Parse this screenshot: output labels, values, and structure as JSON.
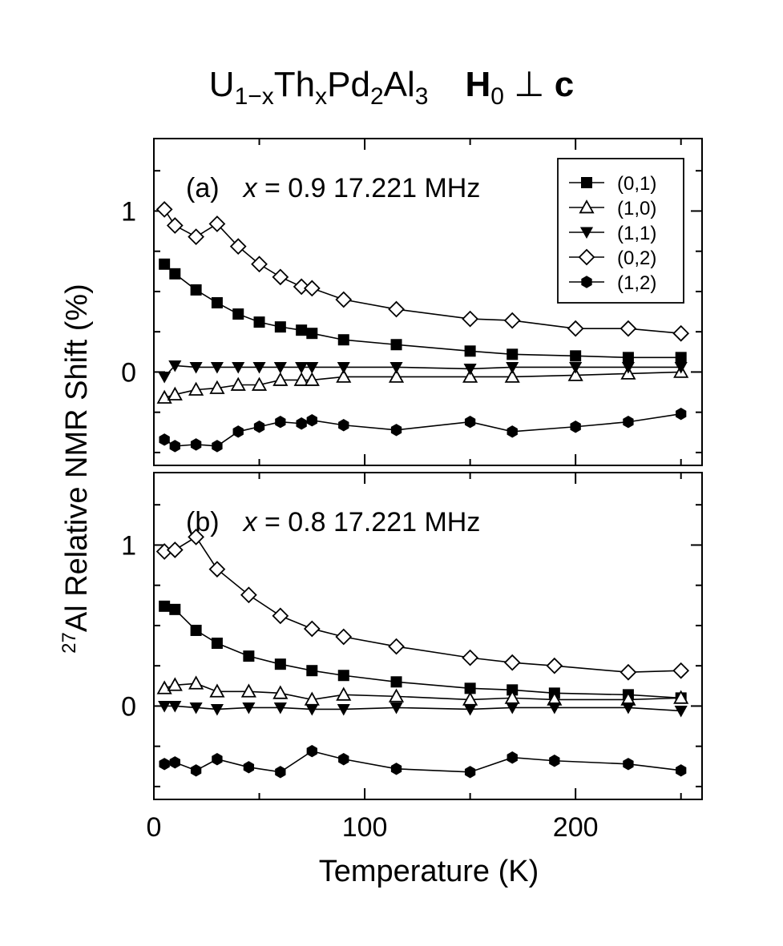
{
  "title": {
    "parts": {
      "p1": "U",
      "p1_sub": "1−x",
      "p2": "Th",
      "p2_sub": "x",
      "p3": "Pd",
      "p3_sub": "2",
      "p4": "Al",
      "p4_sub": "3",
      "h": "H",
      "h_sub": "0",
      "perp": "⊥",
      "c": "c"
    }
  },
  "axes": {
    "xlabel": "Temperature  (K)",
    "ylabel_sup": "27",
    "ylabel": "Al Relative NMR Shift  (%)"
  },
  "legend": {
    "placement": "top-right of panel (a)",
    "entries": [
      {
        "label": "(0,1)",
        "marker": "square-filled"
      },
      {
        "label": "(1,0)",
        "marker": "triangle-up-open"
      },
      {
        "label": "(1,1)",
        "marker": "triangle-down-filled"
      },
      {
        "label": "(0,2)",
        "marker": "diamond-open"
      },
      {
        "label": "(1,2)",
        "marker": "hexagon-filled"
      }
    ]
  },
  "chart_data": [
    {
      "type": "line",
      "panel_label": "(a)",
      "annotation": {
        "var": "x",
        "rest": " = 0.9  17.221 MHz"
      },
      "xlim": [
        0,
        260
      ],
      "ylim": [
        -0.58,
        1.45
      ],
      "xticks": [
        0,
        100,
        200
      ],
      "yticks": [
        0,
        1
      ],
      "grid": false,
      "series": [
        {
          "name": "(0,1)",
          "marker": "square-filled",
          "x": [
            5,
            10,
            20,
            30,
            40,
            50,
            60,
            70,
            75,
            90,
            115,
            150,
            170,
            200,
            225,
            250
          ],
          "y": [
            0.67,
            0.61,
            0.51,
            0.43,
            0.36,
            0.31,
            0.28,
            0.26,
            0.24,
            0.2,
            0.17,
            0.13,
            0.11,
            0.1,
            0.09,
            0.09
          ]
        },
        {
          "name": "(1,0)",
          "marker": "triangle-up-open",
          "x": [
            5,
            10,
            20,
            30,
            40,
            50,
            60,
            70,
            75,
            90,
            115,
            150,
            170,
            200,
            225,
            250
          ],
          "y": [
            -0.16,
            -0.14,
            -0.11,
            -0.1,
            -0.08,
            -0.08,
            -0.05,
            -0.05,
            -0.05,
            -0.03,
            -0.03,
            -0.03,
            -0.03,
            -0.02,
            -0.01,
            0.0
          ]
        },
        {
          "name": "(1,1)",
          "marker": "triangle-down-filled",
          "x": [
            5,
            10,
            20,
            30,
            40,
            50,
            60,
            70,
            75,
            90,
            115,
            150,
            170,
            200,
            225,
            250
          ],
          "y": [
            -0.03,
            0.04,
            0.03,
            0.03,
            0.03,
            0.03,
            0.03,
            0.03,
            0.03,
            0.03,
            0.03,
            0.02,
            0.03,
            0.03,
            0.03,
            0.03
          ]
        },
        {
          "name": "(0,2)",
          "marker": "diamond-open",
          "x": [
            5,
            10,
            20,
            30,
            40,
            50,
            60,
            70,
            75,
            90,
            115,
            150,
            170,
            200,
            225,
            250
          ],
          "y": [
            1.01,
            0.91,
            0.84,
            0.92,
            0.78,
            0.67,
            0.59,
            0.53,
            0.52,
            0.45,
            0.39,
            0.33,
            0.32,
            0.27,
            0.27,
            0.24
          ]
        },
        {
          "name": "(1,2)",
          "marker": "hexagon-filled",
          "x": [
            5,
            10,
            20,
            30,
            40,
            50,
            60,
            70,
            75,
            90,
            115,
            150,
            170,
            200,
            225,
            250
          ],
          "y": [
            -0.42,
            -0.46,
            -0.45,
            -0.46,
            -0.37,
            -0.34,
            -0.31,
            -0.32,
            -0.3,
            -0.33,
            -0.36,
            -0.31,
            -0.37,
            -0.34,
            -0.31,
            -0.26
          ]
        }
      ]
    },
    {
      "type": "line",
      "panel_label": "(b)",
      "annotation": {
        "var": "x",
        "rest": " = 0.8  17.221 MHz"
      },
      "xlim": [
        0,
        260
      ],
      "ylim": [
        -0.58,
        1.45
      ],
      "xticks": [
        0,
        100,
        200
      ],
      "yticks": [
        0,
        1
      ],
      "grid": false,
      "series": [
        {
          "name": "(0,1)",
          "marker": "square-filled",
          "x": [
            5,
            10,
            20,
            30,
            45,
            60,
            75,
            90,
            115,
            150,
            170,
            190,
            225,
            250
          ],
          "y": [
            0.62,
            0.6,
            0.47,
            0.39,
            0.31,
            0.26,
            0.22,
            0.19,
            0.15,
            0.11,
            0.1,
            0.08,
            0.07,
            0.05
          ]
        },
        {
          "name": "(1,0)",
          "marker": "triangle-up-open",
          "x": [
            5,
            10,
            20,
            30,
            45,
            60,
            75,
            90,
            115,
            150,
            170,
            190,
            225,
            250
          ],
          "y": [
            0.11,
            0.13,
            0.14,
            0.09,
            0.09,
            0.08,
            0.04,
            0.07,
            0.06,
            0.04,
            0.05,
            0.04,
            0.04,
            0.05
          ]
        },
        {
          "name": "(1,1)",
          "marker": "triangle-down-filled",
          "x": [
            5,
            10,
            20,
            30,
            45,
            60,
            75,
            90,
            115,
            150,
            170,
            190,
            225,
            250
          ],
          "y": [
            0.0,
            0.0,
            -0.01,
            -0.02,
            -0.01,
            -0.01,
            -0.02,
            -0.02,
            -0.01,
            -0.02,
            -0.01,
            -0.01,
            -0.01,
            -0.03
          ]
        },
        {
          "name": "(0,2)",
          "marker": "diamond-open",
          "x": [
            5,
            10,
            20,
            30,
            45,
            60,
            75,
            90,
            115,
            150,
            170,
            190,
            225,
            250
          ],
          "y": [
            0.96,
            0.97,
            1.05,
            0.85,
            0.69,
            0.56,
            0.48,
            0.43,
            0.37,
            0.3,
            0.27,
            0.25,
            0.21,
            0.22
          ]
        },
        {
          "name": "(1,2)",
          "marker": "hexagon-filled",
          "x": [
            5,
            10,
            20,
            30,
            45,
            60,
            75,
            90,
            115,
            150,
            170,
            190,
            225,
            250
          ],
          "y": [
            -0.36,
            -0.35,
            -0.4,
            -0.33,
            -0.38,
            -0.41,
            -0.28,
            -0.33,
            -0.39,
            -0.41,
            -0.32,
            -0.34,
            -0.36,
            -0.4
          ]
        }
      ]
    }
  ]
}
